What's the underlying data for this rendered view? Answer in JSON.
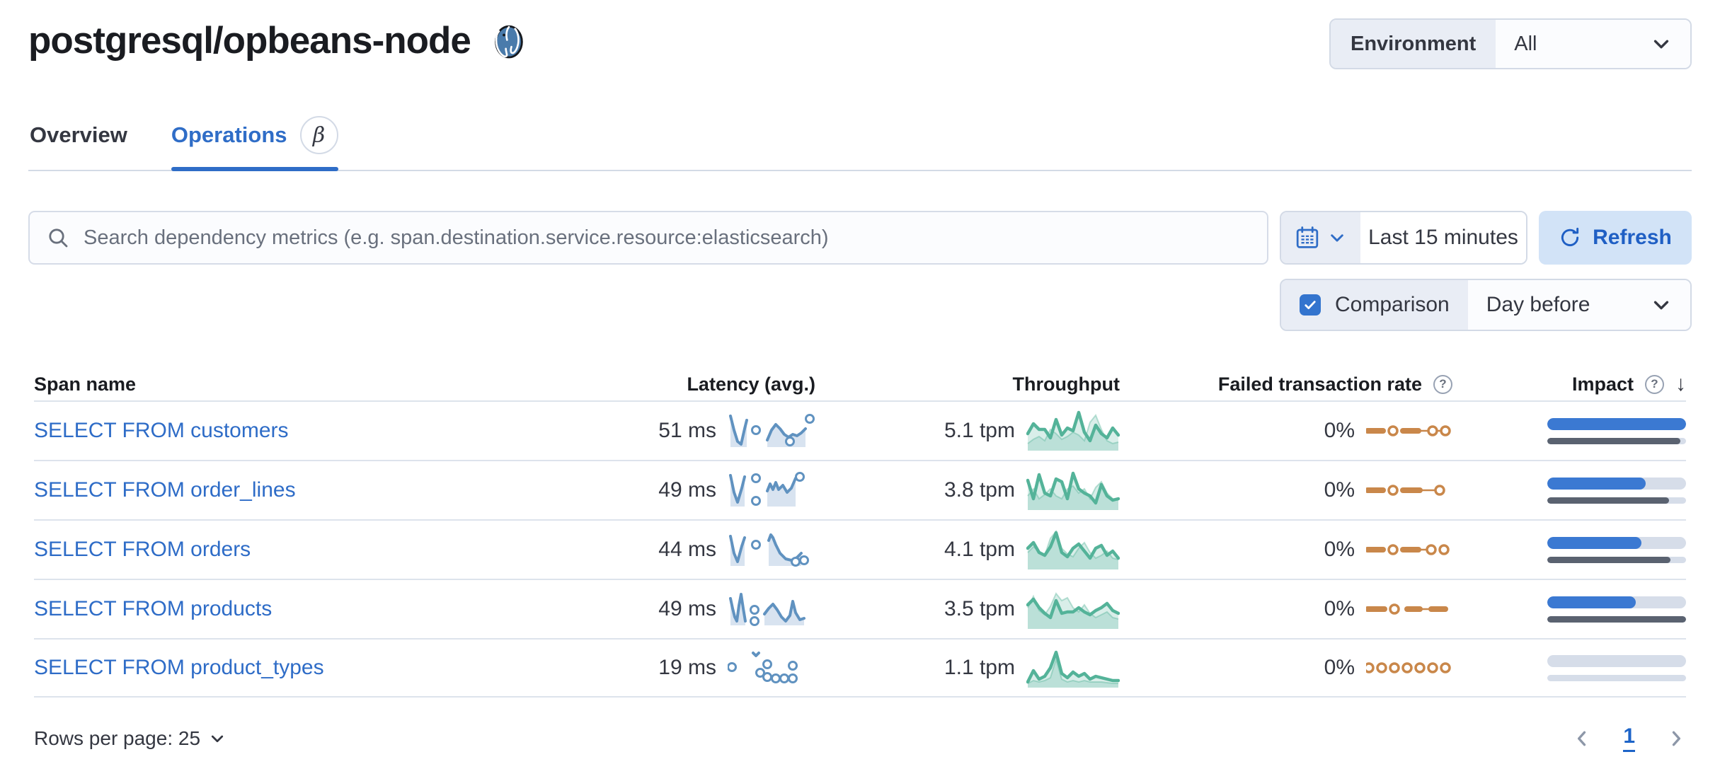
{
  "page": {
    "title": "postgresql/opbeans-node"
  },
  "environment": {
    "label": "Environment",
    "value": "All"
  },
  "tabs": [
    {
      "label": "Overview",
      "active": false
    },
    {
      "label": "Operations",
      "active": true
    }
  ],
  "icons": {
    "beta_badge": "β",
    "question": "?",
    "sort_desc": "↓",
    "postgresql_icon": "postgresql-elephant",
    "search_icon": "magnifier",
    "calendar_icon": "calendar",
    "refresh_icon": "refresh"
  },
  "toolbar": {
    "search_placeholder": "Search dependency metrics (e.g. span.destination.service.resource:elasticsearch)",
    "time_range": "Last 15 minutes",
    "refresh_label": "Refresh",
    "comparison_label": "Comparison",
    "comparison_checked": true,
    "comparison_value": "Day before"
  },
  "table": {
    "columns": [
      "Span name",
      "Latency (avg.)",
      "Throughput",
      "Failed transaction rate",
      "Impact"
    ],
    "rows": [
      {
        "span_name": "SELECT FROM customers",
        "latency": "51 ms",
        "throughput": "5.1 tpm",
        "failed_rate": "0%",
        "impact": 1.0,
        "impact_prev": 0.96,
        "latency_spark": {
          "segments": [
            {
              "pts": [
                [
                  4,
                  6
                ],
                [
                  9,
                  26
                ],
                [
                  14,
                  42
                ],
                [
                  19,
                  46
                ],
                [
                  24,
                  24
                ],
                [
                  27,
                  12
                ]
              ],
              "area": true
            },
            {
              "pts": [
                [
                  56,
                  40
                ],
                [
                  62,
                  26
                ],
                [
                  68,
                  18
                ],
                [
                  74,
                  24
                ],
                [
                  80,
                  32
                ],
                [
                  86,
                  36
                ],
                [
                  92,
                  32
                ],
                [
                  98,
                  34
                ],
                [
                  104,
                  30
                ],
                [
                  110,
                  24
                ]
              ],
              "area": true
            }
          ],
          "dots": [
            [
              40,
              26
            ],
            [
              88,
              42
            ],
            [
              116,
              10
            ]
          ]
        },
        "throughput_spark": {
          "current": [
            34,
            20,
            28,
            28,
            40,
            14,
            36,
            26,
            30,
            4,
            32,
            44,
            22,
            34,
            40,
            26,
            36
          ],
          "prev": [
            48,
            42,
            38,
            44,
            28,
            34,
            42,
            38,
            32,
            36,
            44,
            18,
            8,
            28,
            44,
            48,
            46
          ]
        },
        "failed_spark": {
          "dashes": [
            [
              2,
              24
            ],
            [
              52,
              74
            ]
          ],
          "thins": [
            [
              74,
              92
            ],
            [
              100,
              110
            ]
          ],
          "dots": [
            38,
            94,
            112
          ]
        }
      },
      {
        "span_name": "SELECT FROM order_lines",
        "latency": "49 ms",
        "throughput": "3.8 tpm",
        "failed_rate": "0%",
        "impact": 0.71,
        "impact_prev": 0.88,
        "latency_spark": {
          "segments": [
            {
              "pts": [
                [
                  4,
                  6
                ],
                [
                  9,
                  30
                ],
                [
                  14,
                  44
                ],
                [
                  20,
                  24
                ],
                [
                  24,
                  8
                ]
              ],
              "area": true
            },
            {
              "pts": [
                [
                  56,
                  28
                ],
                [
                  60,
                  18
                ],
                [
                  64,
                  26
                ],
                [
                  68,
                  16
                ],
                [
                  72,
                  26
                ],
                [
                  78,
                  20
                ],
                [
                  84,
                  30
                ],
                [
                  90,
                  24
                ],
                [
                  96,
                  10
                ]
              ],
              "area": true
            }
          ],
          "dots": [
            [
              40,
              10
            ],
            [
              40,
              42
            ],
            [
              102,
              8
            ]
          ]
        },
        "throughput_spark": {
          "current": [
            16,
            42,
            8,
            34,
            38,
            14,
            18,
            42,
            6,
            28,
            34,
            38,
            48,
            22,
            38,
            44,
            42
          ],
          "prev": [
            38,
            28,
            42,
            36,
            28,
            38,
            42,
            28,
            24,
            34,
            28,
            42,
            26,
            18,
            34,
            42,
            44
          ]
        },
        "failed_spark": {
          "dashes": [
            [
              2,
              24
            ],
            [
              52,
              76
            ]
          ],
          "thins": [
            [
              76,
              100
            ]
          ],
          "dots": [
            38,
            104
          ]
        }
      },
      {
        "span_name": "SELECT FROM orders",
        "latency": "44 ms",
        "throughput": "4.1 tpm",
        "failed_rate": "0%",
        "impact": 0.68,
        "impact_prev": 0.89,
        "latency_spark": {
          "segments": [
            {
              "pts": [
                [
                  4,
                  8
                ],
                [
                  9,
                  32
                ],
                [
                  14,
                  44
                ],
                [
                  20,
                  22
                ],
                [
                  24,
                  10
                ]
              ],
              "area": true
            },
            {
              "pts": [
                [
                  58,
                  14
                ],
                [
                  61,
                  6
                ],
                [
                  64,
                  10
                ],
                [
                  68,
                  20
                ],
                [
                  74,
                  32
                ],
                [
                  82,
                  40
                ],
                [
                  90,
                  42
                ],
                [
                  98,
                  38
                ],
                [
                  104,
                  32
                ]
              ],
              "area": true
            }
          ],
          "dots": [
            [
              40,
              20
            ],
            [
              96,
              44
            ],
            [
              108,
              42
            ]
          ]
        },
        "throughput_spark": {
          "current": [
            28,
            20,
            34,
            38,
            26,
            6,
            34,
            40,
            28,
            22,
            32,
            42,
            28,
            24,
            38,
            32,
            42
          ],
          "prev": [
            34,
            26,
            32,
            38,
            14,
            4,
            28,
            36,
            40,
            28,
            20,
            34,
            42,
            38,
            32,
            42,
            44
          ]
        },
        "failed_spark": {
          "dashes": [
            [
              2,
              24
            ],
            [
              52,
              74
            ]
          ],
          "thins": [
            [
              74,
              90
            ]
          ],
          "dots": [
            38,
            92,
            110
          ]
        }
      },
      {
        "span_name": "SELECT FROM products",
        "latency": "49 ms",
        "throughput": "3.5 tpm",
        "failed_rate": "0%",
        "impact": 0.64,
        "impact_prev": 1.0,
        "latency_spark": {
          "segments": [
            {
              "pts": [
                [
                  4,
                  12
                ],
                [
                  7,
                  26
                ],
                [
                  10,
                  38
                ],
                [
                  13,
                  44
                ],
                [
                  16,
                  22
                ],
                [
                  19,
                  6
                ],
                [
                  22,
                  26
                ],
                [
                  25,
                  44
                ]
              ],
              "area": true
            },
            {
              "pts": [
                [
                  52,
                  34
                ],
                [
                  58,
                  26
                ],
                [
                  64,
                  20
                ],
                [
                  70,
                  28
                ],
                [
                  76,
                  38
                ],
                [
                  82,
                  44
                ],
                [
                  88,
                  36
                ],
                [
                  92,
                  16
                ],
                [
                  96,
                  32
                ],
                [
                  102,
                  42
                ],
                [
                  108,
                  40
                ]
              ],
              "area": true
            }
          ],
          "dots": [
            [
              38,
              28
            ],
            [
              38,
              44
            ]
          ]
        },
        "throughput_spark": {
          "current": [
            24,
            16,
            28,
            36,
            42,
            18,
            36,
            34,
            34,
            28,
            34,
            38,
            32,
            28,
            22,
            32,
            36
          ],
          "prev": [
            28,
            12,
            32,
            38,
            26,
            8,
            18,
            14,
            28,
            34,
            24,
            36,
            42,
            38,
            34,
            42,
            44
          ]
        },
        "failed_spark": {
          "dashes": [
            [
              2,
              26
            ],
            [
              58,
              76
            ],
            [
              92,
              112
            ]
          ],
          "thins": [
            [
              76,
              92
            ]
          ],
          "dots": [
            40
          ]
        }
      },
      {
        "span_name": "SELECT FROM product_types",
        "latency": "19 ms",
        "throughput": "1.1 tpm",
        "failed_rate": "0%",
        "impact": 0.0,
        "impact_prev": 0.0,
        "latency_spark": {
          "segments": [
            {
              "pts": [
                [
                  36,
                  6
                ],
                [
                  40,
                  10
                ],
                [
                  44,
                  6
                ]
              ],
              "area": false
            }
          ],
          "dots": [
            [
              6,
              26
            ],
            [
              46,
              34
            ],
            [
              56,
              22
            ],
            [
              56,
              40
            ],
            [
              68,
              42
            ],
            [
              80,
              42
            ],
            [
              92,
              24
            ],
            [
              92,
              42
            ]
          ]
        },
        "throughput_spark": {
          "current": [
            50,
            34,
            46,
            42,
            30,
            8,
            38,
            44,
            36,
            42,
            38,
            46,
            42,
            44,
            46,
            48,
            48
          ],
          "prev": [
            52,
            48,
            50,
            48,
            44,
            18,
            46,
            50,
            48,
            50,
            48,
            50,
            50,
            50,
            51,
            52,
            52
          ]
        },
        "failed_spark": {
          "dashes": [],
          "thins": [],
          "dots": [
            4,
            22,
            40,
            58,
            76,
            94,
            112
          ]
        }
      }
    ]
  },
  "pagination": {
    "rows_per_page_label": "Rows per page: 25",
    "current_page": "1"
  },
  "colors": {
    "accent_blue": "#2f6dc7",
    "link_blue": "#2e6cc7",
    "spark_blue": "#6092c0",
    "spark_blue_area": "#d8e3f0",
    "spark_green": "#54b399",
    "spark_orange": "#c9874a",
    "impact_bar_blue": "#3b79d2",
    "impact_bar_gray": "#5a6270",
    "impact_track": "#d6dde9",
    "refresh_bg": "#d2e3f7",
    "border": "#d3dae6"
  }
}
